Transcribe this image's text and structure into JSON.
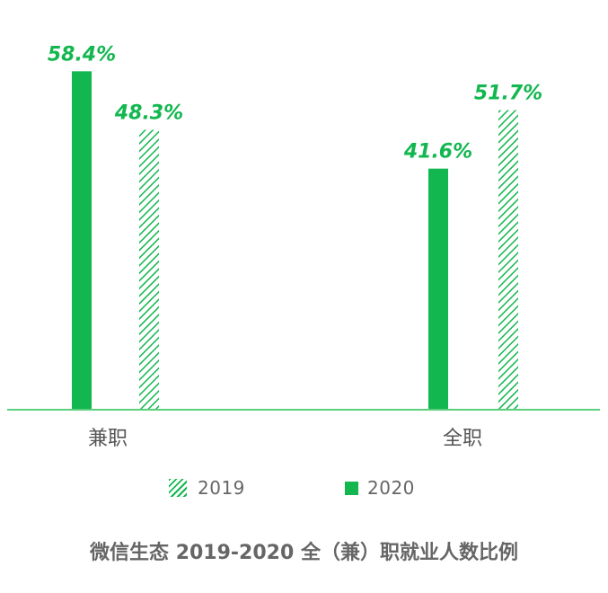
{
  "chart_data": {
    "type": "bar",
    "categories": [
      "兼职",
      "全职"
    ],
    "series": [
      {
        "name": "2020",
        "values": [
          58.4,
          41.6
        ],
        "style": "solid"
      },
      {
        "name": "2019",
        "values": [
          48.3,
          51.7
        ],
        "style": "hatched"
      }
    ],
    "data_labels": [
      [
        "58.4%",
        "41.6%"
      ],
      [
        "48.3%",
        "51.7%"
      ]
    ],
    "ylim": [
      0,
      60
    ],
    "grid": false,
    "legend_position": "bottom",
    "title": "",
    "xlabel": "",
    "ylabel": ""
  },
  "legend": {
    "items": [
      {
        "label": "2019",
        "style": "hatched"
      },
      {
        "label": "2020",
        "style": "solid"
      }
    ]
  },
  "caption": "微信生态 2019-2020 全（兼）职就业人数比例",
  "colors": {
    "accent": "#12b74f",
    "axis": "#5ccf7e",
    "text": "#666666"
  }
}
